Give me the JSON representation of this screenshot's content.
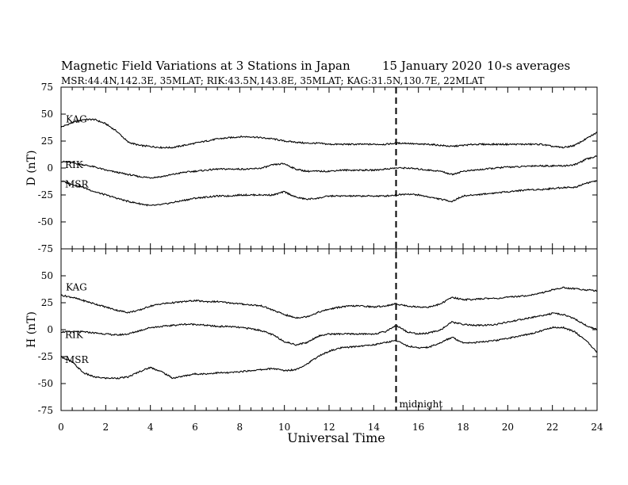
{
  "chart_data": [
    {
      "type": "line",
      "panel": "D",
      "title": "Magnetic Field Variations at 3 Stations in Japan",
      "date": "15 January 2020",
      "averaging": "10-s averages",
      "stations_info": "MSR:44.4N,142.3E, 35MLAT;  RIK:43.5N,143.8E, 35MLAT;  KAG:31.5N,130.7E, 22MLAT",
      "ylabel": "D (nT)",
      "ylim": [
        -75,
        75
      ],
      "yticks": [
        "75",
        "50",
        "25",
        "0",
        "-25",
        "-50",
        "-75"
      ],
      "series": [
        {
          "name": "KAG",
          "x": [
            0,
            0.5,
            1,
            1.5,
            2,
            2.5,
            3,
            3.5,
            4,
            4.5,
            5,
            5.5,
            6,
            6.5,
            7,
            7.5,
            8,
            8.5,
            9,
            9.5,
            10,
            10.5,
            11,
            11.5,
            12,
            12.5,
            13,
            13.5,
            14,
            14.5,
            15,
            15.5,
            16,
            16.5,
            17,
            17.5,
            18,
            18.5,
            19,
            19.5,
            20,
            20.5,
            21,
            21.5,
            22,
            22.5,
            23,
            23.5,
            24
          ],
          "y": [
            38,
            42,
            45,
            45,
            41,
            34,
            24,
            21,
            20,
            19,
            19,
            21,
            23,
            25,
            27,
            28,
            29,
            29,
            28,
            27,
            25,
            24,
            23,
            23,
            22,
            22,
            22,
            22,
            22,
            22,
            23,
            23,
            22,
            22,
            21,
            20,
            21,
            22,
            22,
            22,
            22,
            22,
            22,
            22,
            20,
            19,
            21,
            27,
            33
          ]
        },
        {
          "name": "RIK",
          "x": [
            0,
            0.5,
            1,
            1.5,
            2,
            2.5,
            3,
            3.5,
            4,
            4.5,
            5,
            5.5,
            6,
            6.5,
            7,
            7.5,
            8,
            8.5,
            9,
            9.5,
            10,
            10.5,
            11,
            11.5,
            12,
            12.5,
            13,
            13.5,
            14,
            14.5,
            15,
            15.5,
            16,
            16.5,
            17,
            17.5,
            18,
            18.5,
            19,
            19.5,
            20,
            20.5,
            21,
            21.5,
            22,
            22.5,
            23,
            23.5,
            24
          ],
          "y": [
            6,
            5,
            3,
            1,
            -2,
            -4,
            -6,
            -8,
            -9,
            -8,
            -6,
            -4,
            -3,
            -2,
            -1,
            -1,
            -1,
            -1,
            0,
            3,
            4,
            -1,
            -3,
            -3,
            -3,
            -2,
            -2,
            -2,
            -2,
            -1,
            0,
            0,
            -1,
            -2,
            -3,
            -6,
            -3,
            -2,
            -1,
            0,
            1,
            1,
            2,
            2,
            2,
            2,
            3,
            8,
            11
          ]
        },
        {
          "name": "MSR",
          "x": [
            0,
            0.5,
            1,
            1.5,
            2,
            2.5,
            3,
            3.5,
            4,
            4.5,
            5,
            5.5,
            6,
            6.5,
            7,
            7.5,
            8,
            8.5,
            9,
            9.5,
            10,
            10.5,
            11,
            11.5,
            12,
            12.5,
            13,
            13.5,
            14,
            14.5,
            15,
            15.5,
            16,
            16.5,
            17,
            17.5,
            18,
            18.5,
            19,
            19.5,
            20,
            20.5,
            21,
            21.5,
            22,
            22.5,
            23,
            23.5,
            24
          ],
          "y": [
            -12,
            -15,
            -18,
            -22,
            -25,
            -28,
            -31,
            -33,
            -35,
            -34,
            -32,
            -30,
            -28,
            -27,
            -26,
            -26,
            -25,
            -25,
            -25,
            -25,
            -22,
            -27,
            -29,
            -28,
            -26,
            -26,
            -26,
            -26,
            -26,
            -26,
            -25,
            -24,
            -25,
            -27,
            -29,
            -31,
            -26,
            -25,
            -24,
            -23,
            -22,
            -21,
            -20,
            -20,
            -19,
            -18,
            -18,
            -14,
            -12
          ]
        }
      ]
    },
    {
      "type": "line",
      "panel": "H",
      "ylabel": "H (nT)",
      "xlabel": "Universal Time",
      "xlim": [
        0,
        24
      ],
      "xticks": [
        "0",
        "2",
        "4",
        "6",
        "8",
        "10",
        "12",
        "14",
        "16",
        "18",
        "20",
        "22",
        "24"
      ],
      "ylim": [
        -75,
        75
      ],
      "yticks": [
        "",
        "50",
        "25",
        "0",
        "-25",
        "-50",
        "-75"
      ],
      "annotation": {
        "text": "midnight",
        "x": 15
      },
      "series": [
        {
          "name": "KAG",
          "x": [
            0,
            0.5,
            1,
            1.5,
            2,
            2.5,
            3,
            3.5,
            4,
            4.5,
            5,
            5.5,
            6,
            6.5,
            7,
            7.5,
            8,
            8.5,
            9,
            9.5,
            10,
            10.5,
            11,
            11.5,
            12,
            12.5,
            13,
            13.5,
            14,
            14.5,
            15,
            15.5,
            16,
            16.5,
            17,
            17.5,
            18,
            18.5,
            19,
            19.5,
            20,
            20.5,
            21,
            21.5,
            22,
            22.5,
            23,
            23.5,
            24
          ],
          "y": [
            32,
            30,
            27,
            24,
            21,
            18,
            16,
            18,
            22,
            24,
            25,
            26,
            27,
            26,
            26,
            25,
            24,
            23,
            22,
            18,
            14,
            11,
            12,
            16,
            19,
            21,
            22,
            22,
            21,
            22,
            24,
            22,
            21,
            21,
            24,
            30,
            28,
            28,
            29,
            29,
            30,
            31,
            32,
            34,
            37,
            39,
            38,
            37,
            36
          ]
        },
        {
          "name": "RIK",
          "x": [
            0,
            0.5,
            1,
            1.5,
            2,
            2.5,
            3,
            3.5,
            4,
            4.5,
            5,
            5.5,
            6,
            6.5,
            7,
            7.5,
            8,
            8.5,
            9,
            9.5,
            10,
            10.5,
            11,
            11.5,
            12,
            12.5,
            13,
            13.5,
            14,
            14.5,
            15,
            15.5,
            16,
            16.5,
            17,
            17.5,
            18,
            18.5,
            19,
            19.5,
            20,
            20.5,
            21,
            21.5,
            22,
            22.5,
            23,
            23.5,
            24
          ],
          "y": [
            -2,
            -2,
            -2,
            -3,
            -4,
            -5,
            -4,
            -1,
            2,
            3,
            4,
            5,
            5,
            4,
            3,
            3,
            2,
            1,
            -1,
            -5,
            -11,
            -14,
            -12,
            -6,
            -4,
            -4,
            -4,
            -4,
            -4,
            -2,
            4,
            -2,
            -4,
            -3,
            0,
            7,
            5,
            4,
            4,
            5,
            7,
            9,
            11,
            13,
            15,
            14,
            10,
            4,
            0
          ]
        },
        {
          "name": "MSR",
          "x": [
            0,
            0.5,
            1,
            1.5,
            2,
            2.5,
            3,
            3.5,
            4,
            4.5,
            5,
            5.5,
            6,
            6.5,
            7,
            7.5,
            8,
            8.5,
            9,
            9.5,
            10,
            10.5,
            11,
            11.5,
            12,
            12.5,
            13,
            13.5,
            14,
            14.5,
            15,
            15.5,
            16,
            16.5,
            17,
            17.5,
            18,
            18.5,
            19,
            19.5,
            20,
            20.5,
            21,
            21.5,
            22,
            22.5,
            23,
            23.5,
            24
          ],
          "y": [
            -25,
            -30,
            -40,
            -44,
            -45,
            -45,
            -44,
            -39,
            -35,
            -39,
            -45,
            -43,
            -41,
            -41,
            -40,
            -40,
            -39,
            -38,
            -37,
            -36,
            -38,
            -37,
            -32,
            -25,
            -20,
            -17,
            -16,
            -15,
            -14,
            -12,
            -10,
            -15,
            -17,
            -16,
            -12,
            -7,
            -12,
            -12,
            -11,
            -10,
            -8,
            -6,
            -4,
            -1,
            2,
            2,
            -2,
            -10,
            -21
          ]
        }
      ]
    }
  ]
}
